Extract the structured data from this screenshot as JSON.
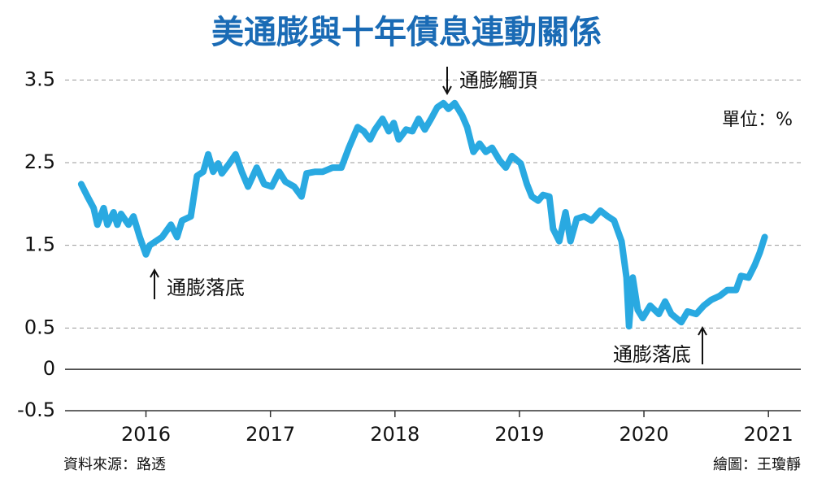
{
  "chart_data": {
    "type": "line",
    "title": "美通膨與十年債息連動關係",
    "unit_label": "單位：%",
    "source": "資料來源：路透",
    "credit": "繪圖：王瓊靜",
    "annotations": [
      "通膨觸頂",
      "通膨落底",
      "通膨落底"
    ],
    "color": "#29a9e1",
    "grid": true,
    "x": [
      2015.48,
      2015.53,
      2015.58,
      2015.61,
      2015.66,
      2015.69,
      2015.74,
      2015.77,
      2015.8,
      2015.86,
      2015.9,
      2015.95,
      2016.0,
      2016.03,
      2016.08,
      2016.13,
      2016.2,
      2016.25,
      2016.29,
      2016.36,
      2016.41,
      2016.46,
      2016.5,
      2016.54,
      2016.58,
      2016.61,
      2016.67,
      2016.72,
      2016.77,
      2016.82,
      2016.89,
      2016.95,
      2017.01,
      2017.07,
      2017.12,
      2017.19,
      2017.25,
      2017.29,
      2017.36,
      2017.42,
      2017.5,
      2017.57,
      2017.63,
      2017.7,
      2017.75,
      2017.8,
      2017.84,
      2017.9,
      2017.95,
      2017.99,
      2018.03,
      2018.09,
      2018.14,
      2018.19,
      2018.24,
      2018.29,
      2018.34,
      2018.39,
      2018.43,
      2018.48,
      2018.54,
      2018.58,
      2018.63,
      2018.68,
      2018.73,
      2018.78,
      2018.84,
      2018.89,
      2018.94,
      2019.01,
      2019.06,
      2019.1,
      2019.15,
      2019.19,
      2019.24,
      2019.27,
      2019.32,
      2019.37,
      2019.41,
      2019.46,
      2019.52,
      2019.58,
      2019.65,
      2019.71,
      2019.76,
      2019.82,
      2019.86,
      2019.88,
      2019.91,
      2019.95,
      2019.99,
      2020.05,
      2020.12,
      2020.17,
      2020.22,
      2020.3,
      2020.35,
      2020.42,
      2020.48,
      2020.54,
      2020.61,
      2020.67,
      2020.74,
      2020.78,
      2020.84,
      2020.89,
      2020.93,
      2020.97
    ],
    "values": [
      2.24,
      2.09,
      1.95,
      1.75,
      1.95,
      1.75,
      1.9,
      1.75,
      1.88,
      1.75,
      1.85,
      1.6,
      1.39,
      1.5,
      1.55,
      1.6,
      1.75,
      1.6,
      1.8,
      1.85,
      2.34,
      2.39,
      2.6,
      2.39,
      2.49,
      2.37,
      2.49,
      2.6,
      2.39,
      2.21,
      2.44,
      2.24,
      2.21,
      2.39,
      2.27,
      2.21,
      2.09,
      2.37,
      2.39,
      2.39,
      2.44,
      2.44,
      2.68,
      2.93,
      2.88,
      2.78,
      2.9,
      3.03,
      2.88,
      2.98,
      2.78,
      2.9,
      2.88,
      3.03,
      2.9,
      3.03,
      3.17,
      3.22,
      3.15,
      3.22,
      3.07,
      2.93,
      2.63,
      2.73,
      2.63,
      2.68,
      2.53,
      2.44,
      2.58,
      2.49,
      2.24,
      2.09,
      2.04,
      2.11,
      2.09,
      1.7,
      1.55,
      1.9,
      1.55,
      1.82,
      1.85,
      1.8,
      1.92,
      1.85,
      1.8,
      1.55,
      1.11,
      0.52,
      1.11,
      0.72,
      0.62,
      0.77,
      0.67,
      0.82,
      0.67,
      0.57,
      0.7,
      0.67,
      0.77,
      0.84,
      0.89,
      0.96,
      0.96,
      1.13,
      1.11,
      1.26,
      1.41,
      1.6
    ],
    "xlim": [
      2015.35,
      2021.26
    ],
    "xticks": [
      2016,
      2017,
      2018,
      2019,
      2020,
      2021
    ],
    "ylim": [
      -0.5,
      3.7
    ],
    "yticks": [
      3.5,
      2.5,
      1.5,
      0.5,
      0,
      -0.5
    ]
  }
}
